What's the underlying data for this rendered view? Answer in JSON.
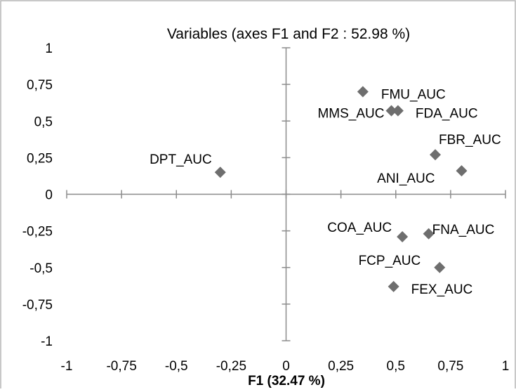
{
  "chart_data": {
    "type": "scatter",
    "title": "Variables (axes F1 and F2 : 52.98 %)",
    "xlabel": "F1 (32.47 %)",
    "ylabel": "",
    "xlim": [
      -1,
      1
    ],
    "ylim": [
      -1,
      1
    ],
    "grid": false,
    "x_ticks": [
      "-1",
      "-0,75",
      "-0,5",
      "-0,25",
      "0",
      "0,25",
      "0,5",
      "0,75",
      "1"
    ],
    "y_ticks": [
      "1",
      "0,75",
      "0,5",
      "0,25",
      "0",
      "-0,25",
      "-0,5",
      "-0,75",
      "-1"
    ],
    "marker_color": "#6e6e6e",
    "points": [
      {
        "label": "FMU_AUC",
        "x": 0.35,
        "y": 0.7
      },
      {
        "label": "MMS_AUC",
        "x": 0.48,
        "y": 0.57
      },
      {
        "label": "FDA_AUC",
        "x": 0.51,
        "y": 0.57
      },
      {
        "label": "FBR_AUC",
        "x": 0.68,
        "y": 0.27
      },
      {
        "label": "DPT_AUC",
        "x": -0.3,
        "y": 0.15
      },
      {
        "label": "ANI_AUC",
        "x": 0.8,
        "y": 0.16
      },
      {
        "label": "COA_AUC",
        "x": 0.53,
        "y": -0.29
      },
      {
        "label": "FNA_AUC",
        "x": 0.65,
        "y": -0.27
      },
      {
        "label": "FCP_AUC",
        "x": 0.7,
        "y": -0.5
      },
      {
        "label": "FEX_AUC",
        "x": 0.49,
        "y": -0.63
      }
    ]
  }
}
